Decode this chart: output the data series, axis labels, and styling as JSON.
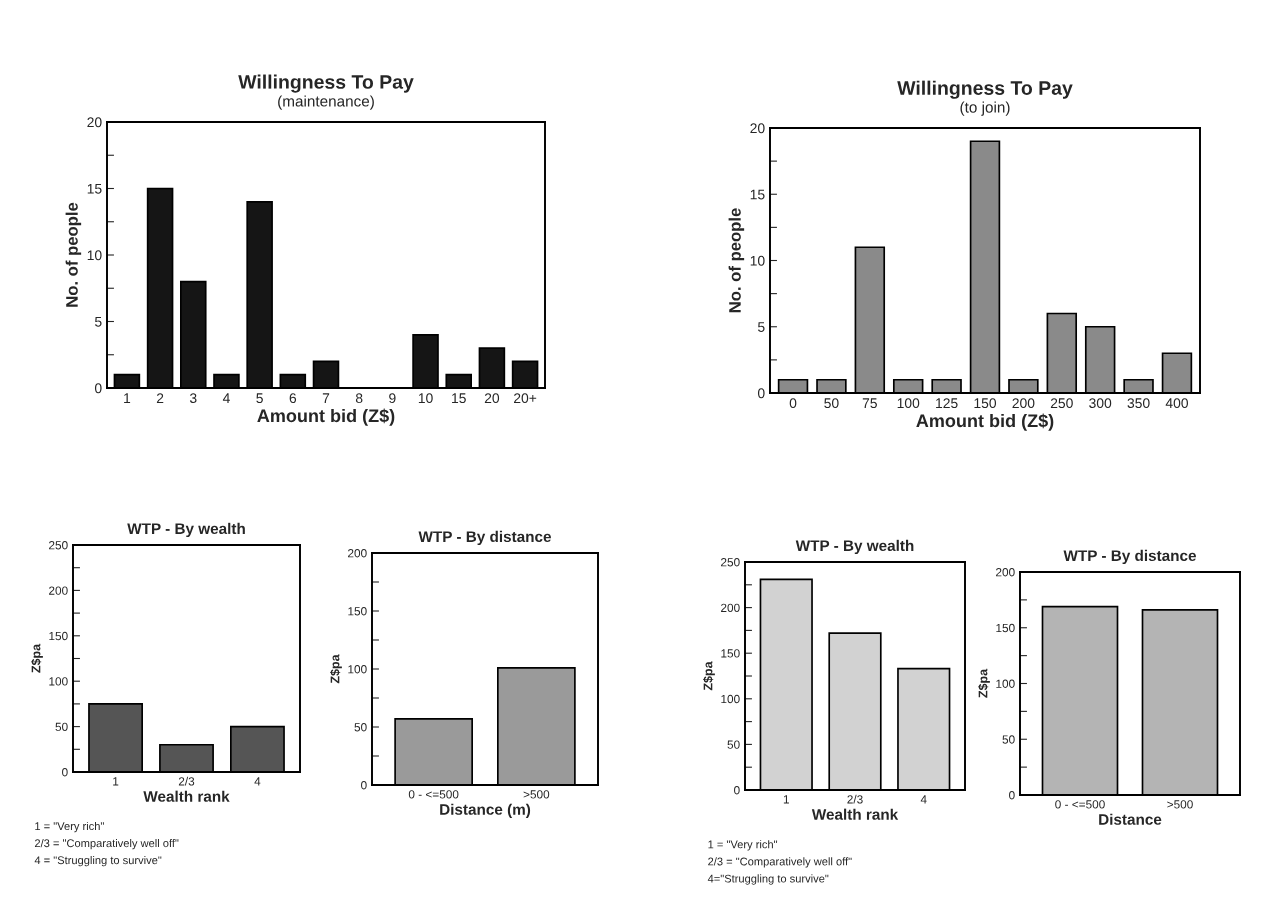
{
  "chart_data": [
    {
      "type": "bar",
      "title": "Willingness To Pay",
      "subtitle": "(maintenance)",
      "xlabel": "Amount bid (Z$)",
      "ylabel": "No. of people",
      "categories": [
        "1",
        "2",
        "3",
        "4",
        "5",
        "6",
        "7",
        "8",
        "9",
        "10",
        "15",
        "20",
        "20+"
      ],
      "values": [
        1,
        15,
        8,
        1,
        14,
        1,
        2,
        0,
        0,
        4,
        1,
        3,
        2
      ],
      "color": "#151515",
      "ylim": [
        0,
        20
      ],
      "yticks": [
        0,
        {
          "value": 2.5,
          "label": null
        },
        5,
        {
          "value": 7.5,
          "label": null
        },
        10,
        {
          "value": 12.5,
          "label": null
        },
        15,
        {
          "value": 17.5,
          "label": null
        },
        20
      ],
      "grid": false
    },
    {
      "type": "bar",
      "title": "Willingness To Pay",
      "subtitle": "(to join)",
      "xlabel": "Amount bid (Z$)",
      "ylabel": "No. of people",
      "categories": [
        "0",
        "50",
        "75",
        "100",
        "125",
        "150",
        "200",
        "250",
        "300",
        "350",
        "400"
      ],
      "values": [
        1,
        1,
        11,
        1,
        1,
        19,
        1,
        6,
        5,
        1,
        3
      ],
      "color": "#8a8a8a",
      "ylim": [
        0,
        20
      ],
      "yticks": [
        0,
        {
          "value": 2.5,
          "label": null
        },
        5,
        {
          "value": 7.5,
          "label": null
        },
        10,
        {
          "value": 12.5,
          "label": null
        },
        15,
        {
          "value": 17.5,
          "label": null
        },
        20
      ],
      "grid": false
    },
    {
      "type": "bar",
      "title": "WTP - By wealth",
      "xlabel": "Wealth rank",
      "ylabel": "Z$pa",
      "categories": [
        "1",
        "2/3",
        "4"
      ],
      "values": [
        75,
        30,
        50
      ],
      "color": "#555555",
      "ylim": [
        0,
        250
      ],
      "yticks": [
        0,
        {
          "value": 25,
          "label": null
        },
        50,
        {
          "value": 75,
          "label": null
        },
        100,
        {
          "value": 125,
          "label": null
        },
        150,
        {
          "value": 175,
          "label": null
        },
        200,
        {
          "value": 225,
          "label": null
        },
        250
      ],
      "grid": false,
      "annotations": [
        "1 = \"Very rich\"",
        "2/3 = \"Comparatively well off\"",
        "4 = \"Struggling to survive\""
      ]
    },
    {
      "type": "bar",
      "title": "WTP - By distance",
      "xlabel": "Distance (m)",
      "ylabel": "Z$pa",
      "categories": [
        "0 - <=500",
        ">500"
      ],
      "values": [
        57,
        101
      ],
      "color": "#9a9a9a",
      "ylim": [
        0,
        200
      ],
      "yticks": [
        0,
        {
          "value": 25,
          "label": null
        },
        50,
        {
          "value": 75,
          "label": null
        },
        100,
        {
          "value": 125,
          "label": null
        },
        150,
        {
          "value": 175,
          "label": null
        },
        200
      ],
      "grid": false
    },
    {
      "type": "bar",
      "title": "WTP - By wealth",
      "xlabel": "Wealth rank",
      "ylabel": "Z$pa",
      "categories": [
        "1",
        "2/3",
        "4"
      ],
      "values": [
        231,
        172,
        133
      ],
      "color": "#d2d2d2",
      "ylim": [
        0,
        250
      ],
      "yticks": [
        0,
        {
          "value": 25,
          "label": null
        },
        50,
        {
          "value": 75,
          "label": null
        },
        100,
        {
          "value": 125,
          "label": null
        },
        150,
        {
          "value": 175,
          "label": null
        },
        200,
        {
          "value": 225,
          "label": null
        },
        250
      ],
      "grid": false,
      "annotations": [
        "1 = \"Very rich\"",
        "2/3 = \"Comparatively well off\"",
        "4=\"Struggling to survive\""
      ]
    },
    {
      "type": "bar",
      "title": "WTP - By distance",
      "xlabel": "Distance",
      "ylabel": "Z$pa",
      "categories": [
        "0 - <=500",
        ">500"
      ],
      "values": [
        169,
        166
      ],
      "color": "#b4b4b4",
      "ylim": [
        0,
        200
      ],
      "yticks": [
        0,
        {
          "value": 25,
          "label": null
        },
        50,
        {
          "value": 75,
          "label": null
        },
        100,
        {
          "value": 125,
          "label": null
        },
        150,
        {
          "value": 175,
          "label": null
        },
        200
      ],
      "grid": false
    }
  ]
}
